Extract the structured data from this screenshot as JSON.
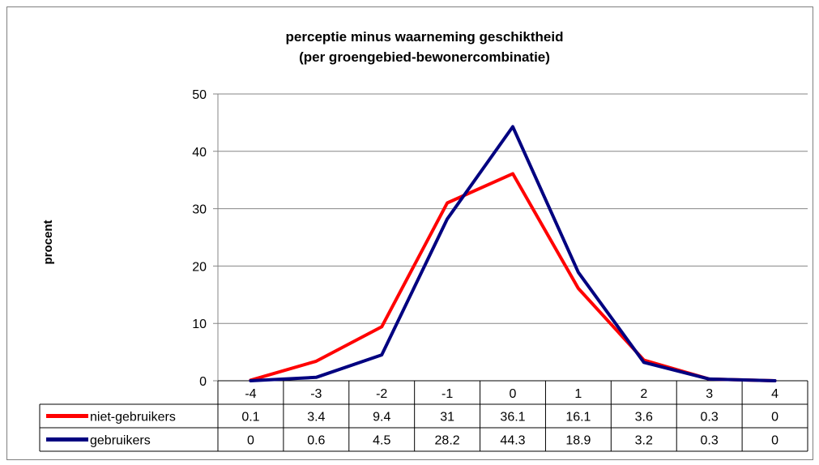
{
  "chart_data": {
    "type": "line",
    "title": "perceptie minus waarneming geschiktheid",
    "subtitle": "(per groengebied-bewonercombinatie)",
    "ylabel": "procent",
    "xlabel": "",
    "ylim": [
      0,
      50
    ],
    "yticks": [
      0,
      10,
      20,
      30,
      40,
      50
    ],
    "categories": [
      "-4",
      "-3",
      "-2",
      "-1",
      "0",
      "1",
      "2",
      "3",
      "4"
    ],
    "grid": true,
    "legend": "data-table",
    "series": [
      {
        "name": "niet-gebruikers",
        "color": "#ff0000",
        "values": [
          0.1,
          3.4,
          9.4,
          31,
          36.1,
          16.1,
          3.6,
          0.3,
          0
        ],
        "labels": [
          "0.1",
          "3.4",
          "9.4",
          "31",
          "36.1",
          "16.1",
          "3.6",
          "0.3",
          "0"
        ]
      },
      {
        "name": "gebruikers",
        "color": "#000080",
        "values": [
          0,
          0.6,
          4.5,
          28.2,
          44.3,
          18.9,
          3.2,
          0.3,
          0
        ],
        "labels": [
          "0",
          "0.6",
          "4.5",
          "28.2",
          "44.3",
          "18.9",
          "3.2",
          "0.3",
          "0"
        ]
      }
    ]
  }
}
